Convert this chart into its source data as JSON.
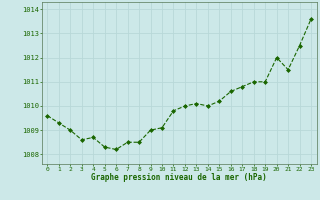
{
  "x": [
    0,
    1,
    2,
    3,
    4,
    5,
    6,
    7,
    8,
    9,
    10,
    11,
    12,
    13,
    14,
    15,
    16,
    17,
    18,
    19,
    20,
    21,
    22,
    23
  ],
  "y": [
    1009.6,
    1009.3,
    1009.0,
    1008.6,
    1008.7,
    1008.3,
    1008.2,
    1008.5,
    1008.5,
    1009.0,
    1009.1,
    1009.8,
    1010.0,
    1010.1,
    1010.0,
    1010.2,
    1010.6,
    1010.8,
    1011.0,
    1011.0,
    1012.0,
    1011.5,
    1012.5,
    1013.6
  ],
  "line_color": "#1a6600",
  "marker_color": "#1a6600",
  "bg_color": "#cce8e8",
  "grid_color": "#b8d8d8",
  "axis_label_color": "#1a6600",
  "tick_label_color": "#1a6600",
  "xlabel": "Graphe pression niveau de la mer (hPa)",
  "ylim": [
    1007.6,
    1014.3
  ],
  "yticks": [
    1008,
    1009,
    1010,
    1011,
    1012,
    1013,
    1014
  ],
  "xticks": [
    0,
    1,
    2,
    3,
    4,
    5,
    6,
    7,
    8,
    9,
    10,
    11,
    12,
    13,
    14,
    15,
    16,
    17,
    18,
    19,
    20,
    21,
    22,
    23
  ]
}
